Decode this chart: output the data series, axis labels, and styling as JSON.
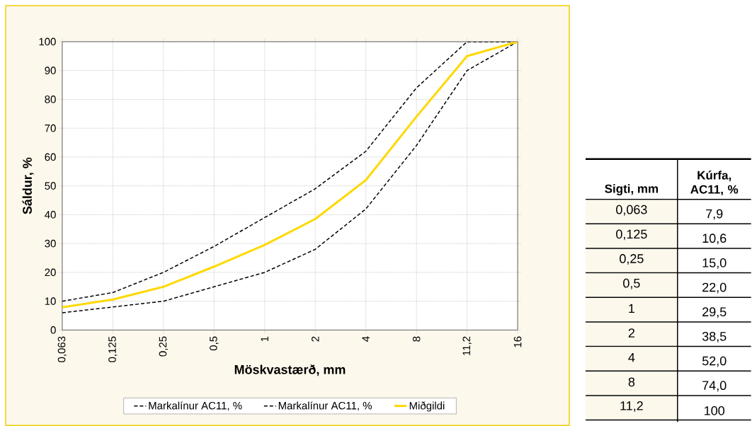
{
  "chart_data": {
    "type": "line",
    "xlabel": "Möskvastærð, mm",
    "ylabel": "Sáldur, %",
    "categories": [
      "0,063",
      "0,125",
      "0,25",
      "0,5",
      "1",
      "2",
      "4",
      "8",
      "11,2",
      "16"
    ],
    "series": [
      {
        "name": "Markalínur AC11, %",
        "color": "#000000",
        "line_style": "dashed",
        "values": [
          10,
          13,
          20,
          29,
          39,
          49,
          62,
          84,
          100,
          100
        ]
      },
      {
        "name": "Markalínur AC11, %",
        "color": "#000000",
        "line_style": "dashed",
        "values": [
          6,
          8,
          10,
          15,
          20,
          28,
          42,
          64,
          90,
          100
        ]
      },
      {
        "name": "Miðgildi",
        "color": "#ffd800",
        "line_style": "solid",
        "values": [
          7.9,
          10.6,
          15,
          22,
          29.5,
          38.5,
          52,
          74,
          95,
          100
        ]
      }
    ],
    "ylim": [
      0,
      100
    ],
    "yticks": [
      0,
      10,
      20,
      30,
      40,
      50,
      60,
      70,
      80,
      90,
      100
    ],
    "grid": true,
    "legend": "bottom",
    "annotations": [
      "Sigti, mm",
      "Kúrfa, AC11, %",
      "0,063",
      "7,9",
      "0,125",
      "10,6",
      "0,25",
      "15,0",
      "0,5",
      "22,0",
      "1",
      "29,5",
      "2",
      "38,5",
      "4",
      "52,0",
      "8",
      "74,0",
      "11,2",
      "100"
    ]
  }
}
